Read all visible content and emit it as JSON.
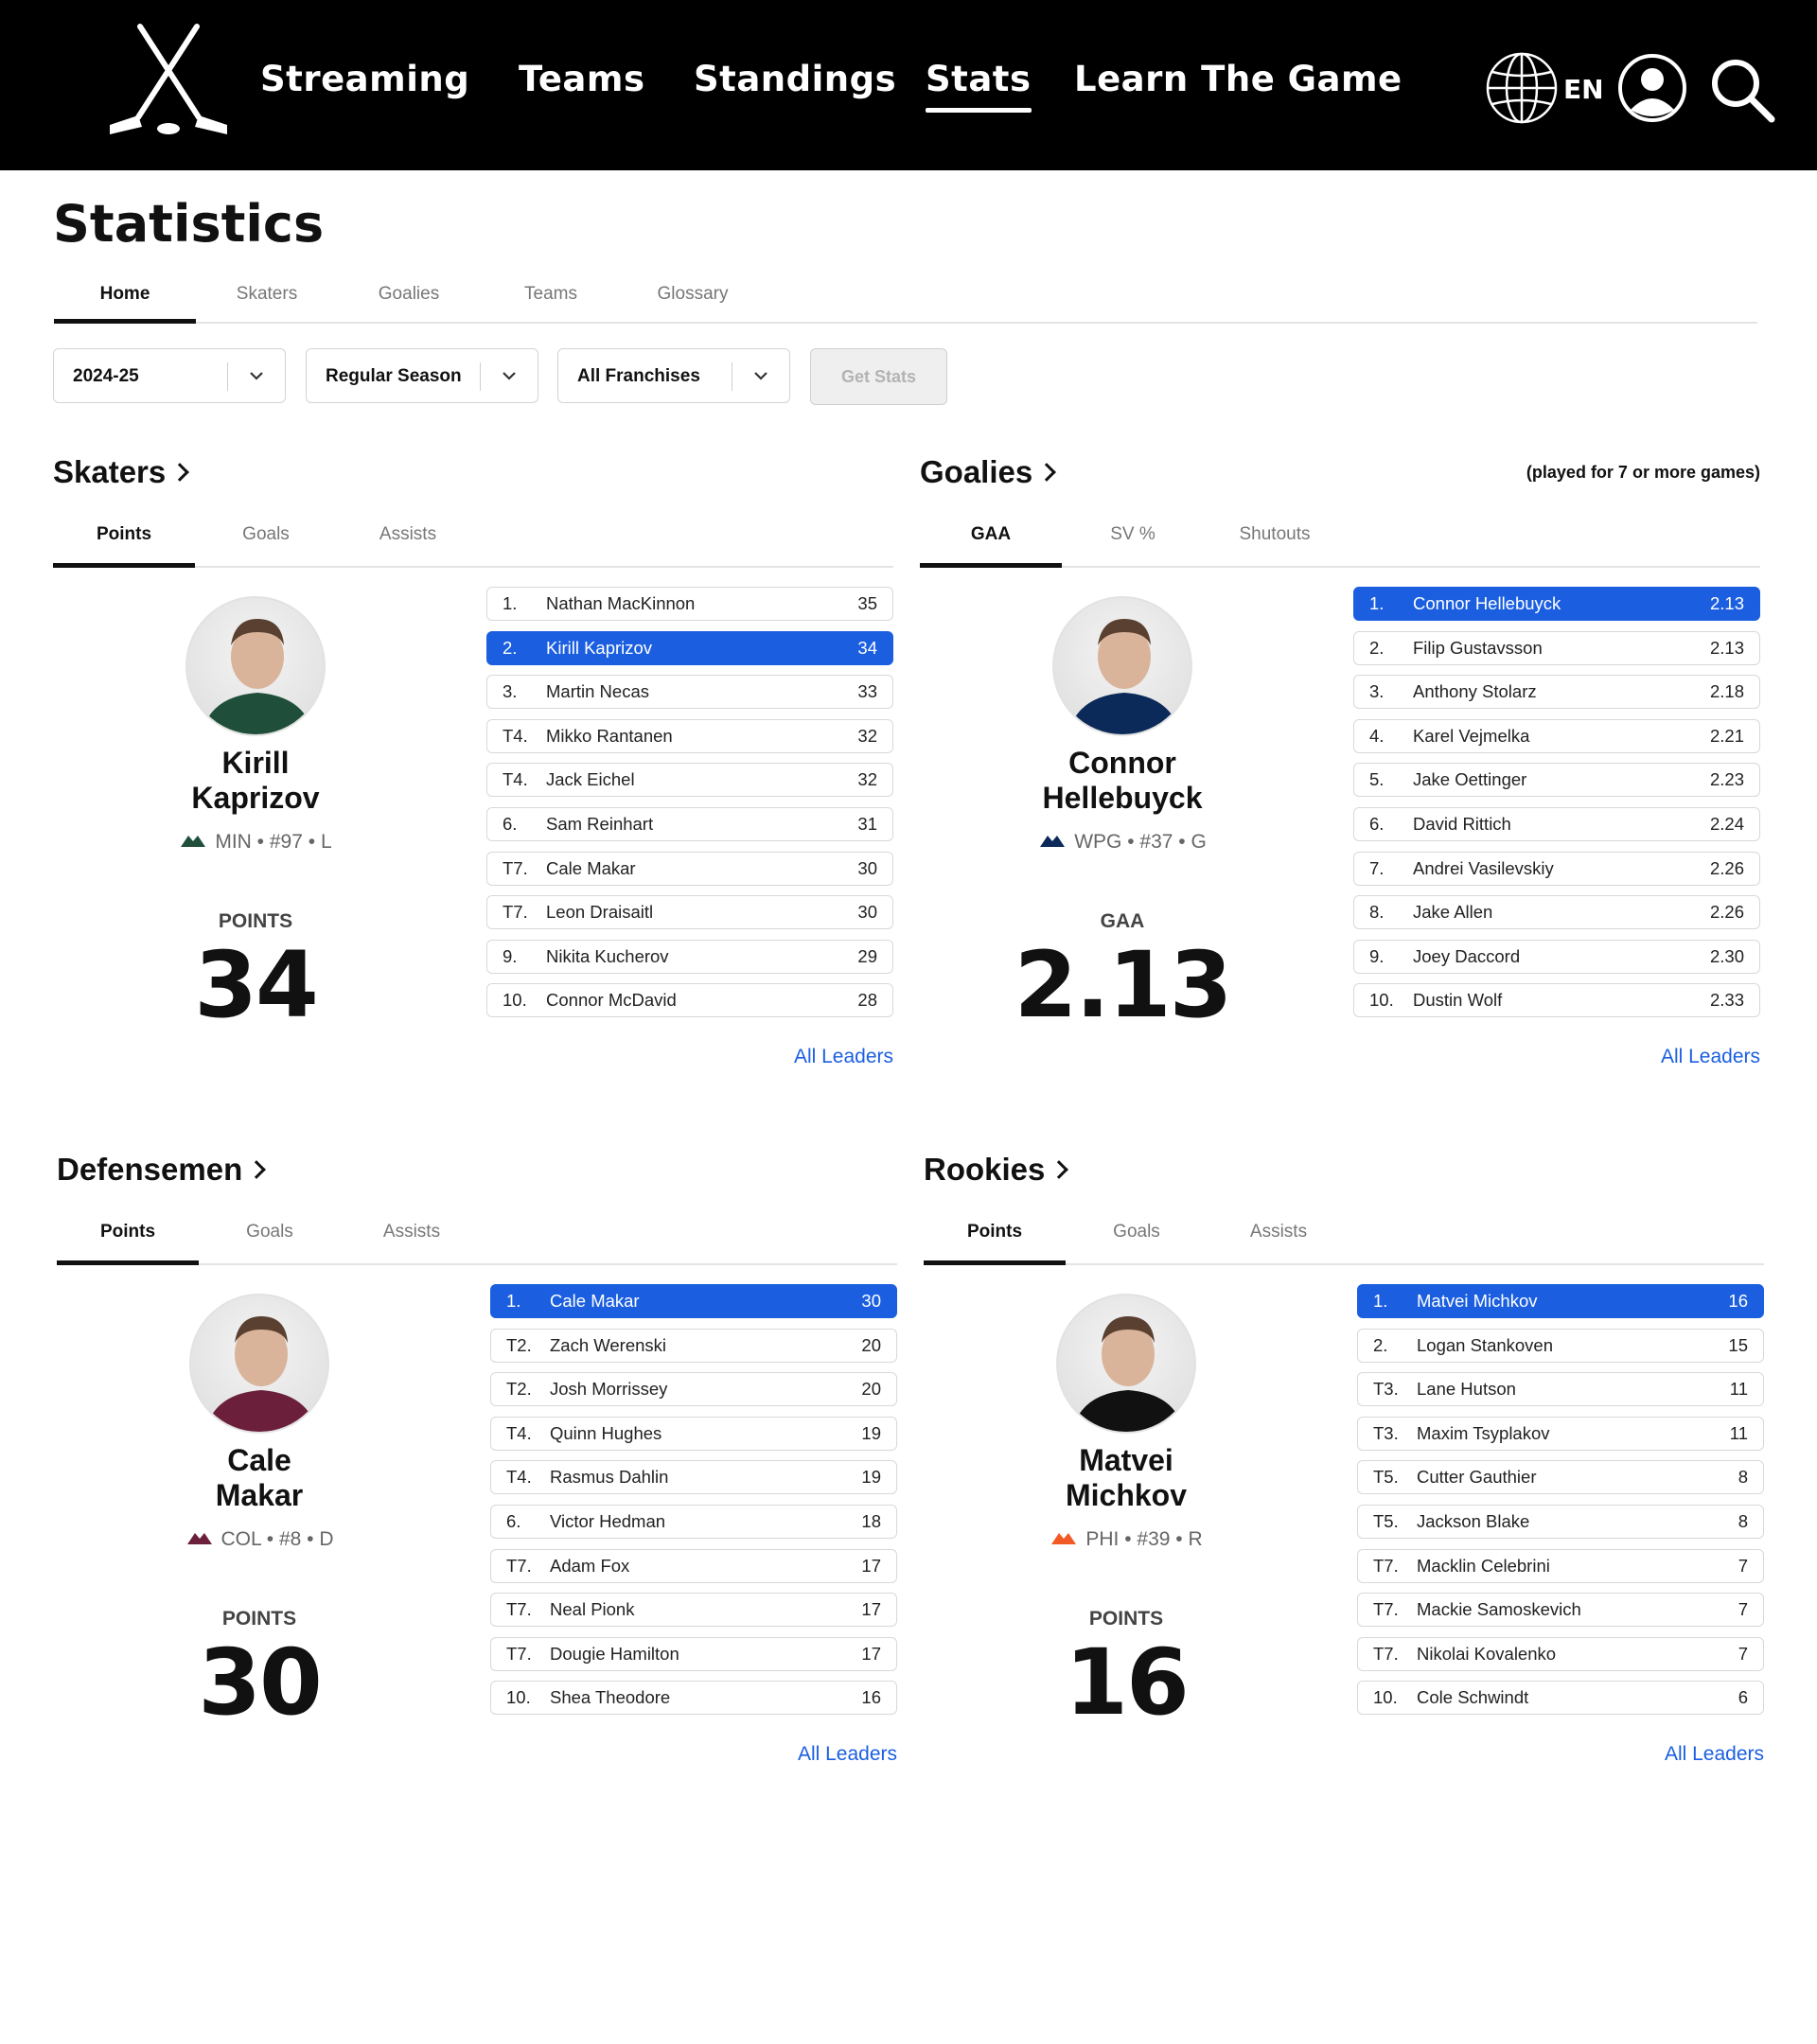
{
  "nav": {
    "items": [
      "Streaming",
      "Teams",
      "Standings",
      "Stats",
      "Learn The Game"
    ],
    "active": "Stats",
    "language": "EN"
  },
  "page": {
    "title": "Statistics",
    "tabs": [
      "Home",
      "Skaters",
      "Goalies",
      "Teams",
      "Glossary"
    ],
    "active_tab": "Home"
  },
  "filters": {
    "season": "2024-25",
    "game_type": "Regular Season",
    "franchise": "All Franchises",
    "get_stats": "Get Stats"
  },
  "colors": {
    "highlight": "#1b5fe0",
    "link": "#1b5fe0",
    "header_bg": "#000000"
  },
  "sections": [
    {
      "title": "Skaters",
      "note": "",
      "tabs": [
        "Points",
        "Goals",
        "Assists"
      ],
      "active_tab": "Points",
      "player": {
        "first": "Kirill",
        "last": "Kaprizov",
        "team": "MIN",
        "number": "#97",
        "position": "L",
        "team_icon": "wild-logo-icon"
      },
      "stat_label": "POINTS",
      "stat_value": "34",
      "leaders": [
        {
          "rank": "1.",
          "name": "Nathan MacKinnon",
          "value": "35"
        },
        {
          "rank": "2.",
          "name": "Kirill Kaprizov",
          "value": "34",
          "highlight": true
        },
        {
          "rank": "3.",
          "name": "Martin Necas",
          "value": "33"
        },
        {
          "rank": "T4.",
          "name": "Mikko Rantanen",
          "value": "32"
        },
        {
          "rank": "T4.",
          "name": "Jack Eichel",
          "value": "32"
        },
        {
          "rank": "6.",
          "name": "Sam Reinhart",
          "value": "31"
        },
        {
          "rank": "T7.",
          "name": "Cale Makar",
          "value": "30"
        },
        {
          "rank": "T7.",
          "name": "Leon Draisaitl",
          "value": "30"
        },
        {
          "rank": "9.",
          "name": "Nikita Kucherov",
          "value": "29"
        },
        {
          "rank": "10.",
          "name": "Connor McDavid",
          "value": "28"
        }
      ],
      "all_leaders": "All Leaders"
    },
    {
      "title": "Goalies",
      "note": "(played for 7 or more games)",
      "tabs": [
        "GAA",
        "SV %",
        "Shutouts"
      ],
      "active_tab": "GAA",
      "player": {
        "first": "Connor",
        "last": "Hellebuyck",
        "team": "WPG",
        "number": "#37",
        "position": "G",
        "team_icon": "jets-logo-icon"
      },
      "stat_label": "GAA",
      "stat_value": "2.13",
      "leaders": [
        {
          "rank": "1.",
          "name": "Connor Hellebuyck",
          "value": "2.13",
          "highlight": true
        },
        {
          "rank": "2.",
          "name": "Filip Gustavsson",
          "value": "2.13"
        },
        {
          "rank": "3.",
          "name": "Anthony Stolarz",
          "value": "2.18"
        },
        {
          "rank": "4.",
          "name": "Karel Vejmelka",
          "value": "2.21"
        },
        {
          "rank": "5.",
          "name": "Jake Oettinger",
          "value": "2.23"
        },
        {
          "rank": "6.",
          "name": "David Rittich",
          "value": "2.24"
        },
        {
          "rank": "7.",
          "name": "Andrei Vasilevskiy",
          "value": "2.26"
        },
        {
          "rank": "8.",
          "name": "Jake Allen",
          "value": "2.26"
        },
        {
          "rank": "9.",
          "name": "Joey Daccord",
          "value": "2.30"
        },
        {
          "rank": "10.",
          "name": "Dustin Wolf",
          "value": "2.33"
        }
      ],
      "all_leaders": "All Leaders"
    },
    {
      "title": "Defensemen",
      "note": "",
      "tabs": [
        "Points",
        "Goals",
        "Assists"
      ],
      "active_tab": "Points",
      "player": {
        "first": "Cale",
        "last": "Makar",
        "team": "COL",
        "number": "#8",
        "position": "D",
        "team_icon": "avalanche-logo-icon"
      },
      "stat_label": "POINTS",
      "stat_value": "30",
      "leaders": [
        {
          "rank": "1.",
          "name": "Cale Makar",
          "value": "30",
          "highlight": true
        },
        {
          "rank": "T2.",
          "name": "Zach Werenski",
          "value": "20"
        },
        {
          "rank": "T2.",
          "name": "Josh Morrissey",
          "value": "20"
        },
        {
          "rank": "T4.",
          "name": "Quinn Hughes",
          "value": "19"
        },
        {
          "rank": "T4.",
          "name": "Rasmus Dahlin",
          "value": "19"
        },
        {
          "rank": "6.",
          "name": "Victor Hedman",
          "value": "18"
        },
        {
          "rank": "T7.",
          "name": "Adam Fox",
          "value": "17"
        },
        {
          "rank": "T7.",
          "name": "Neal Pionk",
          "value": "17"
        },
        {
          "rank": "T7.",
          "name": "Dougie Hamilton",
          "value": "17"
        },
        {
          "rank": "10.",
          "name": "Shea Theodore",
          "value": "16"
        }
      ],
      "all_leaders": "All Leaders"
    },
    {
      "title": "Rookies",
      "note": "",
      "tabs": [
        "Points",
        "Goals",
        "Assists"
      ],
      "active_tab": "Points",
      "player": {
        "first": "Matvei",
        "last": "Michkov",
        "team": "PHI",
        "number": "#39",
        "position": "R",
        "team_icon": "flyers-logo-icon"
      },
      "stat_label": "POINTS",
      "stat_value": "16",
      "leaders": [
        {
          "rank": "1.",
          "name": "Matvei Michkov",
          "value": "16",
          "highlight": true
        },
        {
          "rank": "2.",
          "name": "Logan Stankoven",
          "value": "15"
        },
        {
          "rank": "T3.",
          "name": "Lane Hutson",
          "value": "11"
        },
        {
          "rank": "T3.",
          "name": "Maxim Tsyplakov",
          "value": "11"
        },
        {
          "rank": "T5.",
          "name": "Cutter Gauthier",
          "value": "8"
        },
        {
          "rank": "T5.",
          "name": "Jackson Blake",
          "value": "8"
        },
        {
          "rank": "T7.",
          "name": "Macklin Celebrini",
          "value": "7"
        },
        {
          "rank": "T7.",
          "name": "Mackie Samoskevich",
          "value": "7"
        },
        {
          "rank": "T7.",
          "name": "Nikolai Kovalenko",
          "value": "7"
        },
        {
          "rank": "10.",
          "name": "Cole Schwindt",
          "value": "6"
        }
      ],
      "all_leaders": "All Leaders"
    }
  ]
}
